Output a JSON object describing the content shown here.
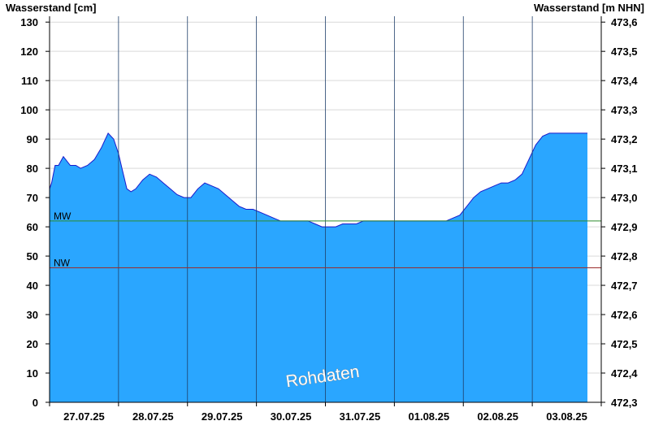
{
  "chart_data": {
    "type": "area",
    "ylabel_left": "Wasserstand [cm]",
    "ylabel_right": "Wasserstand [m NHN]",
    "ylim": [
      0,
      132
    ],
    "yticks_left": [
      "0",
      "10",
      "20",
      "30",
      "40",
      "50",
      "60",
      "70",
      "80",
      "90",
      "100",
      "110",
      "120",
      "130"
    ],
    "yticks_right": [
      "472,3",
      "472,4",
      "472,5",
      "472,6",
      "472,7",
      "472,8",
      "472,9",
      "473,0",
      "473,1",
      "473,2",
      "473,3",
      "473,4",
      "473,5",
      "473,6"
    ],
    "x_labels": [
      "27.07.25",
      "28.07.25",
      "29.07.25",
      "30.07.25",
      "31.07.25",
      "01.08.25",
      "02.08.25",
      "03.08.25"
    ],
    "grid": true,
    "series": [
      {
        "x_unit": "days after 27.07.25 00:00",
        "x": [
          0.0,
          0.03,
          0.08,
          0.13,
          0.2,
          0.3,
          0.38,
          0.45,
          0.55,
          0.65,
          0.75,
          0.85,
          0.93,
          1.0,
          1.05,
          1.08,
          1.12,
          1.18,
          1.25,
          1.35,
          1.45,
          1.55,
          1.65,
          1.75,
          1.85,
          1.95,
          2.05,
          2.15,
          2.25,
          2.35,
          2.45,
          2.55,
          2.65,
          2.75,
          2.85,
          2.95,
          3.05,
          3.15,
          3.25,
          3.35,
          3.45,
          3.55,
          3.65,
          3.75,
          3.85,
          3.95,
          4.05,
          4.15,
          4.25,
          4.35,
          4.45,
          4.55,
          4.65,
          4.75,
          4.85,
          4.95,
          5.05,
          5.15,
          5.25,
          5.35,
          5.45,
          5.55,
          5.65,
          5.75,
          5.85,
          5.95,
          6.05,
          6.15,
          6.25,
          6.35,
          6.45,
          6.55,
          6.65,
          6.75,
          6.85,
          6.95,
          7.05,
          7.15,
          7.25,
          7.35,
          7.45,
          7.55,
          7.65,
          7.75,
          7.8
        ],
        "values": [
          73,
          75,
          81,
          81,
          84,
          81,
          81,
          80,
          81,
          83,
          87,
          92,
          90,
          85,
          80,
          77,
          73,
          72,
          73,
          76,
          78,
          77,
          75,
          73,
          71,
          70,
          70,
          73,
          75,
          74,
          73,
          71,
          69,
          67,
          66,
          66,
          65,
          64,
          63,
          62,
          62,
          62,
          62,
          62,
          61,
          60,
          60,
          60,
          61,
          61,
          61,
          62,
          62,
          62,
          62,
          62,
          62,
          62,
          62,
          62,
          62,
          62,
          62,
          62,
          63,
          64,
          67,
          70,
          72,
          73,
          74,
          75,
          75,
          76,
          78,
          83,
          88,
          91,
          92,
          92,
          92,
          92,
          92,
          92,
          92
        ]
      }
    ],
    "reference_lines": [
      {
        "label": "MW",
        "value": 62,
        "color": "#2e8b2e"
      },
      {
        "label": "NW",
        "value": 46,
        "color": "#9b2c2c"
      }
    ],
    "fill_color": "#2aa6ff",
    "line_color": "#1a1acc",
    "watermark": "Rohdaten"
  }
}
